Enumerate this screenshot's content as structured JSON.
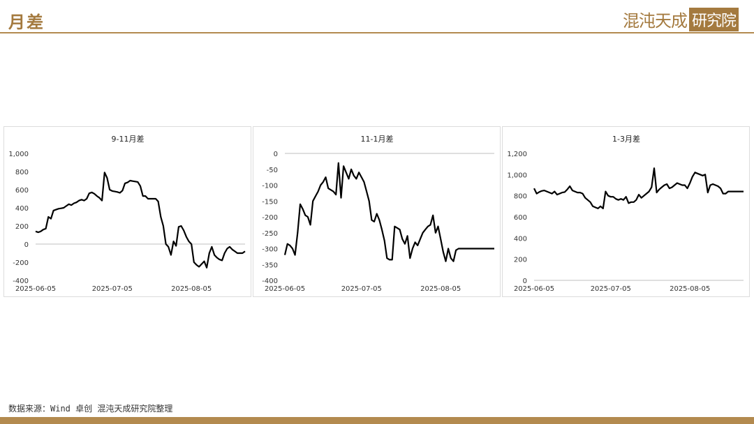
{
  "header": {
    "title": "月差"
  },
  "logo": {
    "text": "混沌天成",
    "box_text": "研究院"
  },
  "source": "数据来源：Wind 卓创 混沌天成研究院整理",
  "colors": {
    "accent": "#a47a3f",
    "line": "#000000",
    "axis": "#bfbfbf"
  },
  "chart_data": [
    {
      "type": "line",
      "title": "9-11月差",
      "ylim": [
        -400,
        1000
      ],
      "yticks": [
        1000,
        800,
        600,
        400,
        200,
        0,
        -200,
        -400
      ],
      "yticklabels": [
        "1,000",
        "800",
        "600",
        "400",
        "200",
        "0",
        "-200",
        "-400"
      ],
      "zero_line": 0,
      "xlim": [
        0,
        82
      ],
      "xticks": [
        0,
        30,
        61
      ],
      "xticklabels": [
        "2025-06-05",
        "2025-07-05",
        "2025-08-05"
      ],
      "series": [
        {
          "x": [
            0,
            1,
            2,
            3,
            4,
            5,
            6,
            7,
            8,
            9,
            10,
            11,
            12,
            13,
            14,
            15,
            16,
            17,
            18,
            19,
            20,
            21,
            22,
            23,
            24,
            25,
            26,
            27,
            28,
            29,
            30,
            31,
            32,
            33,
            34,
            35,
            36,
            37,
            38,
            39,
            40,
            41,
            42,
            43,
            44,
            45,
            46,
            47,
            48,
            49,
            50,
            51,
            52,
            53,
            54,
            55,
            56,
            57,
            58,
            59,
            60,
            61,
            62,
            63,
            64,
            65,
            66,
            67,
            68,
            69,
            70,
            71,
            72,
            73,
            74,
            75,
            76,
            77,
            78,
            79,
            80,
            81,
            82
          ],
          "y": [
            140,
            130,
            140,
            160,
            170,
            300,
            280,
            370,
            380,
            390,
            395,
            400,
            420,
            440,
            430,
            450,
            460,
            480,
            490,
            480,
            500,
            560,
            570,
            555,
            530,
            510,
            480,
            790,
            730,
            600,
            585,
            580,
            575,
            565,
            590,
            670,
            680,
            700,
            695,
            690,
            685,
            640,
            530,
            530,
            500,
            500,
            500,
            500,
            470,
            300,
            200,
            0,
            -30,
            -120,
            30,
            -20,
            190,
            200,
            150,
            80,
            30,
            0,
            -200,
            -230,
            -250,
            -220,
            -190,
            -260,
            -100,
            -30,
            -120,
            -150,
            -170,
            -180,
            -100,
            -50,
            -30,
            -60,
            -80,
            -100,
            -100,
            -100,
            -80
          ]
        }
      ]
    },
    {
      "type": "line",
      "title": "11-1月差",
      "ylim": [
        -400,
        0
      ],
      "yticks": [
        0,
        -50,
        -100,
        -150,
        -200,
        -250,
        -300,
        -350,
        -400
      ],
      "yticklabels": [
        "0",
        "-50",
        "-100",
        "-150",
        "-200",
        "-250",
        "-300",
        "-350",
        "-400"
      ],
      "zero_line": 0,
      "xlim": [
        0,
        82
      ],
      "xticks": [
        0,
        30,
        61
      ],
      "xticklabels": [
        "2025-06-05",
        "2025-07-05",
        "2025-08-05"
      ],
      "series": [
        {
          "x": [
            0,
            1,
            2,
            3,
            4,
            5,
            6,
            7,
            8,
            9,
            10,
            11,
            12,
            13,
            14,
            15,
            16,
            17,
            18,
            19,
            20,
            21,
            22,
            23,
            24,
            25,
            26,
            27,
            28,
            29,
            30,
            31,
            32,
            33,
            34,
            35,
            36,
            37,
            38,
            39,
            40,
            41,
            42,
            43,
            44,
            45,
            46,
            47,
            48,
            49,
            50,
            51,
            52,
            53,
            54,
            55,
            56,
            57,
            58,
            59,
            60,
            61,
            62,
            63,
            64,
            65,
            66,
            67,
            68,
            69,
            70,
            71,
            72,
            73,
            74,
            75,
            76,
            77,
            78,
            79,
            80,
            81,
            82
          ],
          "y": [
            -320,
            -285,
            -290,
            -300,
            -320,
            -250,
            -160,
            -175,
            -195,
            -200,
            -225,
            -150,
            -135,
            -120,
            -100,
            -90,
            -75,
            -110,
            -115,
            -120,
            -130,
            -30,
            -140,
            -40,
            -60,
            -80,
            -50,
            -70,
            -80,
            -60,
            -75,
            -90,
            -120,
            -150,
            -210,
            -215,
            -190,
            -210,
            -240,
            -275,
            -330,
            -335,
            -335,
            -230,
            -235,
            -240,
            -270,
            -285,
            -260,
            -330,
            -300,
            -280,
            -290,
            -270,
            -250,
            -240,
            -230,
            -225,
            -195,
            -250,
            -230,
            -270,
            -310,
            -340,
            -300,
            -330,
            -340,
            -305,
            -300,
            -300,
            -300,
            -300,
            -300,
            -300,
            -300,
            -300,
            -300,
            -300,
            -300,
            -300,
            -300,
            -300,
            -300
          ]
        }
      ]
    },
    {
      "type": "line",
      "title": "1-3月差",
      "ylim": [
        0,
        1200
      ],
      "yticks": [
        1200,
        1000,
        800,
        600,
        400,
        200,
        0
      ],
      "yticklabels": [
        "1,200",
        "1,000",
        "800",
        "600",
        "400",
        "200",
        "0"
      ],
      "zero_line": 0,
      "xlim": [
        0,
        82
      ],
      "xticks": [
        0,
        30,
        61
      ],
      "xticklabels": [
        "2025-06-05",
        "2025-07-05",
        "2025-08-05"
      ],
      "series": [
        {
          "x": [
            0,
            1,
            2,
            3,
            4,
            5,
            6,
            7,
            8,
            9,
            10,
            11,
            12,
            13,
            14,
            15,
            16,
            17,
            18,
            19,
            20,
            21,
            22,
            23,
            24,
            25,
            26,
            27,
            28,
            29,
            30,
            31,
            32,
            33,
            34,
            35,
            36,
            37,
            38,
            39,
            40,
            41,
            42,
            43,
            44,
            45,
            46,
            47,
            48,
            49,
            50,
            51,
            52,
            53,
            54,
            55,
            56,
            57,
            58,
            59,
            60,
            61,
            62,
            63,
            64,
            65,
            66,
            67,
            68,
            69,
            70,
            71,
            72,
            73,
            74,
            75,
            76,
            77,
            78,
            79,
            80,
            81,
            82
          ],
          "y": [
            870,
            820,
            835,
            845,
            850,
            840,
            830,
            820,
            840,
            810,
            820,
            830,
            835,
            860,
            890,
            850,
            840,
            830,
            830,
            820,
            780,
            760,
            740,
            700,
            690,
            680,
            700,
            680,
            840,
            800,
            790,
            790,
            770,
            760,
            770,
            760,
            790,
            730,
            740,
            740,
            760,
            810,
            780,
            800,
            820,
            840,
            880,
            1060,
            830,
            860,
            880,
            900,
            910,
            870,
            880,
            900,
            920,
            910,
            900,
            900,
            870,
            920,
            980,
            1020,
            1010,
            1000,
            990,
            1000,
            830,
            900,
            910,
            900,
            890,
            870,
            820,
            820,
            840,
            840,
            840,
            840,
            840,
            840,
            840
          ]
        }
      ]
    }
  ]
}
